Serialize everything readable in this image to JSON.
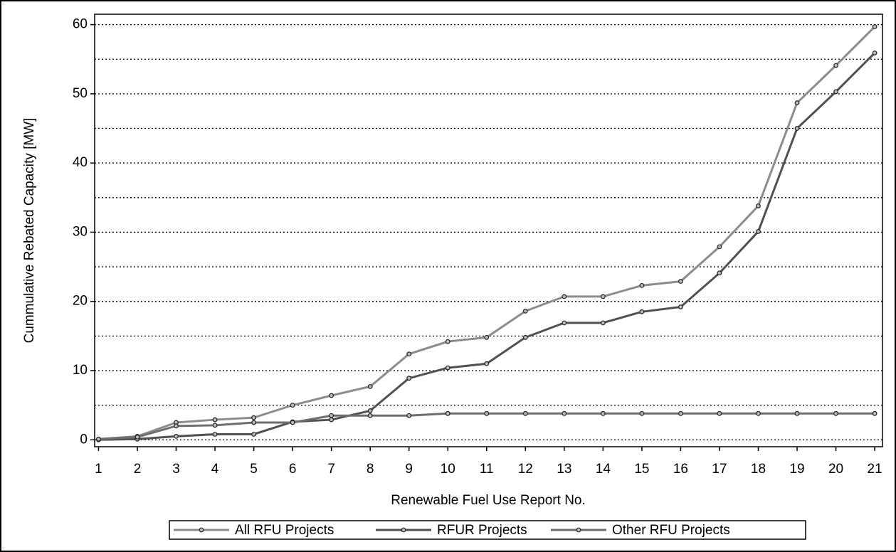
{
  "chart_data": {
    "type": "line",
    "xlabel": "Renewable Fuel Use Report No.",
    "ylabel": "Cummulative Rebated Capacity [MW]",
    "x": [
      1,
      2,
      3,
      4,
      5,
      6,
      7,
      8,
      9,
      10,
      11,
      12,
      13,
      14,
      15,
      16,
      17,
      18,
      19,
      20,
      21
    ],
    "series": [
      {
        "name": "All RFU Projects",
        "color": "#8c8c8c",
        "values": [
          0.1,
          0.5,
          2.5,
          2.9,
          3.2,
          5.0,
          6.4,
          7.7,
          12.4,
          14.2,
          14.8,
          18.6,
          20.7,
          20.7,
          22.3,
          22.9,
          27.9,
          33.8,
          48.7,
          54.1,
          59.7
        ]
      },
      {
        "name": "RFUR Projects",
        "color": "#505050",
        "values": [
          0,
          0.1,
          0.5,
          0.8,
          0.8,
          2.6,
          2.9,
          4.2,
          8.9,
          10.4,
          11.0,
          14.8,
          16.9,
          16.9,
          18.5,
          19.2,
          24.1,
          30.1,
          45.0,
          50.3,
          55.9
        ]
      },
      {
        "name": "Other RFU Projects",
        "color": "#6e6e6e",
        "values": [
          0.1,
          0.4,
          2.0,
          2.1,
          2.5,
          2.5,
          3.5,
          3.5,
          3.5,
          3.8,
          3.8,
          3.8,
          3.8,
          3.8,
          3.8,
          3.8,
          3.8,
          3.8,
          3.8,
          3.8,
          3.8
        ]
      }
    ],
    "xlim": [
      0.9,
      21.2
    ],
    "xticks": [
      1,
      2,
      3,
      4,
      5,
      6,
      7,
      8,
      9,
      10,
      11,
      12,
      13,
      14,
      15,
      16,
      17,
      18,
      19,
      20,
      21
    ],
    "ylim": [
      -1,
      61.5
    ],
    "yticks": [
      0,
      10,
      20,
      30,
      40,
      50,
      60
    ],
    "minor_yticks": [
      5,
      15,
      25,
      35,
      45,
      55
    ],
    "grid": true,
    "legend": "bottom"
  }
}
